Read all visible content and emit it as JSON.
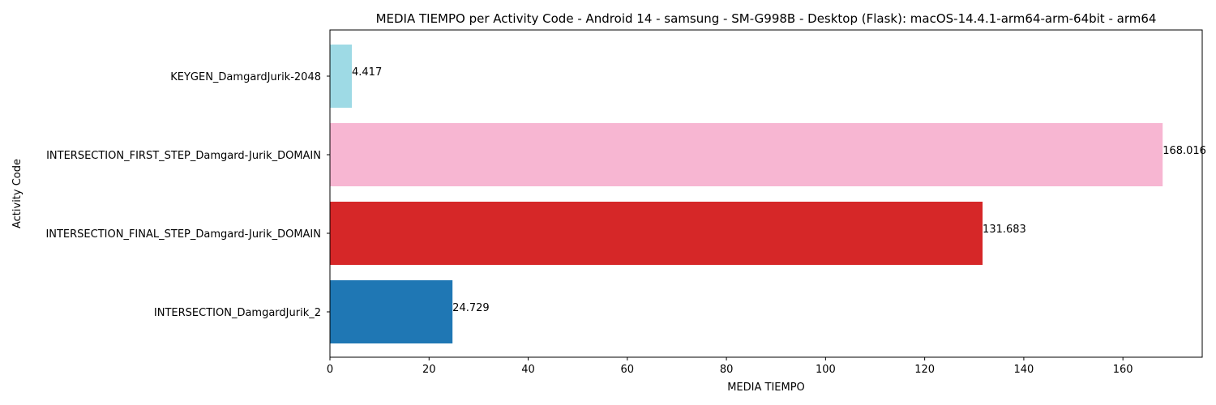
{
  "chart_data": {
    "type": "bar",
    "orientation": "horizontal",
    "title": "MEDIA TIEMPO per Activity Code - Android 14 - samsung - SM-G998B - Desktop (Flask): macOS-14.4.1-arm64-arm-64bit - arm64",
    "xlabel": "MEDIA TIEMPO",
    "ylabel": "Activity Code",
    "xlim": [
      0,
      176
    ],
    "xticks": [
      0,
      20,
      40,
      60,
      80,
      100,
      120,
      140,
      160
    ],
    "grid": false,
    "categories": [
      "KEYGEN_DamgardJurik-2048",
      "INTERSECTION_FIRST_STEP_Damgard-Jurik_DOMAIN",
      "INTERSECTION_FINAL_STEP_Damgard-Jurik_DOMAIN",
      "INTERSECTION_DamgardJurik_2"
    ],
    "values": [
      4.417,
      168.016,
      131.683,
      24.729
    ],
    "value_labels": [
      "4.417",
      "168.016",
      "131.683",
      "24.729"
    ],
    "colors": [
      "#9edae5",
      "#f7b6d2",
      "#d62728",
      "#1f77b4"
    ]
  }
}
